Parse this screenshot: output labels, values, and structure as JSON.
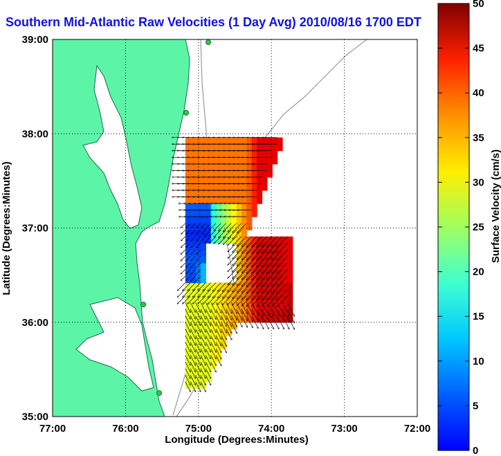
{
  "title": "Southern Mid-Atlantic Raw Velocities (1 Day Avg) 2010/08/16 1700 EDT",
  "chart_data": {
    "type": "heatmap",
    "xlabel": "Longitude (Degrees:Minutes)",
    "ylabel": "Latitude (Degrees:Minutes)",
    "xlim": [
      -77,
      -72
    ],
    "ylim": [
      35,
      39
    ],
    "x_ticks": [
      {
        "value": -77,
        "label": "77:00"
      },
      {
        "value": -76,
        "label": "76:00"
      },
      {
        "value": -75,
        "label": "75:00"
      },
      {
        "value": -74,
        "label": "74:00"
      },
      {
        "value": -73,
        "label": "73:00"
      },
      {
        "value": -72,
        "label": "72:00"
      }
    ],
    "y_ticks": [
      {
        "value": 35,
        "label": "35:00"
      },
      {
        "value": 36,
        "label": "36:00"
      },
      {
        "value": 37,
        "label": "37:00"
      },
      {
        "value": 38,
        "label": "38:00"
      },
      {
        "value": 39,
        "label": "39:00"
      }
    ],
    "grid": "dotted, at major ticks",
    "colorbar": {
      "label": "Surface Velocity (cm/s)",
      "range": [
        0,
        50
      ],
      "ticks": [
        0,
        5,
        10,
        15,
        20,
        25,
        30,
        35,
        40,
        45,
        50
      ],
      "colormap": "jet"
    },
    "colors": {
      "land": "#5cf5a8",
      "water": "#ffffff",
      "coastline": "#1a6a45",
      "bathymetry": "#999999",
      "arrows": "#000000",
      "stations": "#2ecc40",
      "title": "#1010e8"
    }
  }
}
